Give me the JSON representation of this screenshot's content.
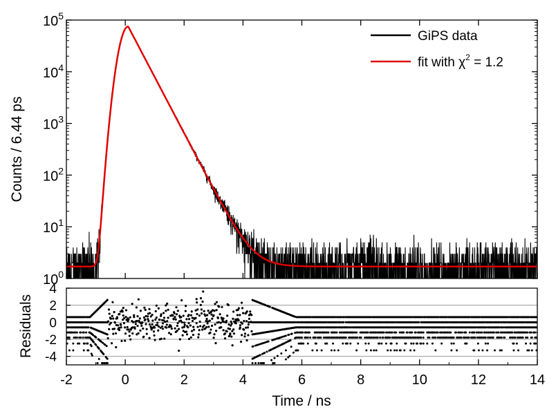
{
  "chart_data": [
    {
      "type": "line",
      "panel": "main",
      "ylabel": "Counts / 6.44 ps",
      "yscale": "log",
      "ylim": [
        1,
        100000
      ],
      "xlim": [
        -2,
        14
      ],
      "y_ticks": [
        {
          "value": 1,
          "label": "10",
          "exp": "0"
        },
        {
          "value": 10,
          "label": "10",
          "exp": "1"
        },
        {
          "value": 100,
          "label": "10",
          "exp": "2"
        },
        {
          "value": 1000,
          "label": "10",
          "exp": "3"
        },
        {
          "value": 10000,
          "label": "10",
          "exp": "4"
        },
        {
          "value": 100000,
          "label": "10",
          "exp": "5"
        }
      ],
      "legend": {
        "placement": "top-right",
        "data_label": "GiPS data",
        "fit_prefix": "fit with ",
        "fit_symbol": "χ",
        "fit_exponent": "2",
        "fit_suffix": " = 1.2"
      },
      "series": [
        {
          "name": "GiPS data",
          "color": "#000000",
          "model": {
            "baseline": 1.7,
            "t0": 0.1,
            "peak": 75000,
            "decay_ns": 0.4,
            "rise_ns": 0.22,
            "noise": "poisson"
          }
        },
        {
          "name": "fit with χ² = 1.2",
          "color": "#e00000",
          "x": [
            -2,
            -1,
            -0.8,
            -0.6,
            -0.5,
            -0.4,
            -0.3,
            -0.2,
            -0.1,
            0,
            0.05,
            0.1,
            0.2,
            0.5,
            1,
            1.5,
            2,
            2.5,
            3,
            3.5,
            4,
            4.3,
            4.6,
            5,
            6,
            8,
            10,
            12,
            14
          ],
          "y": [
            1.7,
            1.7,
            2.2,
            5,
            15,
            60,
            350,
            2500,
            15000,
            55000,
            70000,
            75000,
            62000,
            30000,
            8500,
            2300,
            620,
            170,
            47,
            14,
            5.2,
            3.2,
            2.3,
            1.8,
            1.7,
            1.7,
            1.7,
            1.7,
            1.7
          ]
        }
      ]
    },
    {
      "type": "scatter",
      "panel": "residuals",
      "ylabel": "Residuals",
      "xlabel": "Time / ns",
      "ylim": [
        -5,
        4
      ],
      "xlim": [
        -2,
        14
      ],
      "grid_y": [
        -4,
        -2,
        0,
        2,
        4
      ],
      "y_ticks": [
        4,
        2,
        0,
        -2,
        -4
      ],
      "x_ticks": [
        -2,
        0,
        2,
        4,
        6,
        8,
        10,
        12,
        14
      ],
      "model": {
        "color": "#000000",
        "levels": [
          0.6,
          0.0,
          -0.6,
          -1.2,
          -1.8,
          -2.5,
          -3.3
        ],
        "scatter_region": [
          -0.6,
          4.3
        ],
        "scatter_sd": 1.1
      }
    }
  ]
}
